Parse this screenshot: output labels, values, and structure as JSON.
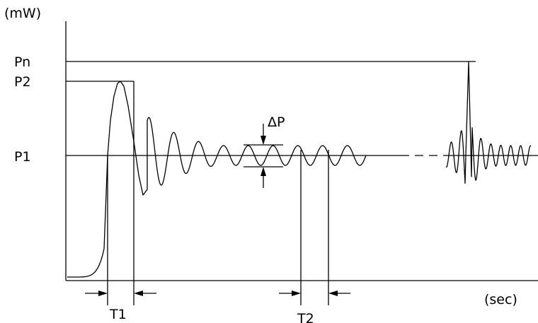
{
  "axes": {
    "y_unit": "(mW)",
    "x_unit": "(sec)"
  },
  "power_levels": {
    "pn": "Pn",
    "p2": "P2",
    "p1": "P1"
  },
  "annotations": {
    "delta_p": "ΔP",
    "t1": "T1",
    "t2": "T2"
  }
}
